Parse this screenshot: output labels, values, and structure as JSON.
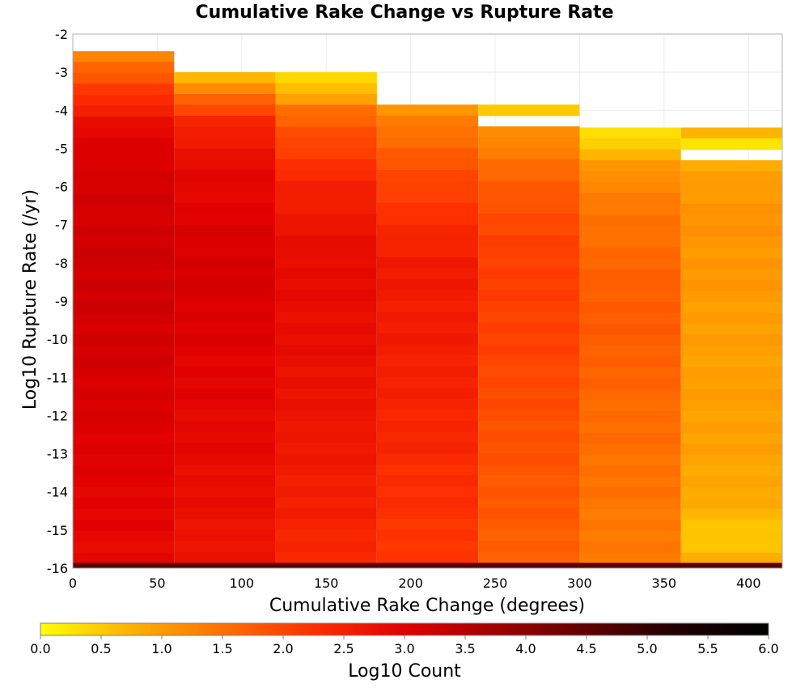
{
  "chart_data": {
    "type": "heatmap",
    "title": "Cumulative Rake Change vs Rupture Rate",
    "xlabel": "Cumulative Rake Change (degrees)",
    "ylabel": "Log10 Rupture Rate (/yr)",
    "xlim": [
      0,
      420
    ],
    "ylim": [
      -16,
      -2
    ],
    "x_ticks": [
      "0",
      "50",
      "100",
      "150",
      "200",
      "250",
      "300",
      "350",
      "400"
    ],
    "y_ticks": [
      "-2",
      "-3",
      "-4",
      "-5",
      "-6",
      "-7",
      "-8",
      "-9",
      "-10",
      "-11",
      "-12",
      "-13",
      "-14",
      "-15",
      "-16"
    ],
    "x_bin_edges": [
      0,
      60,
      120,
      180,
      240,
      300,
      360,
      420
    ],
    "y_bin_size": 0.2857,
    "grid": true,
    "colorbar": {
      "label": "Log10 Count",
      "range": [
        0,
        6
      ],
      "ticks": [
        "0.0",
        "0.5",
        "1.0",
        "1.5",
        "2.0",
        "2.5",
        "3.0",
        "3.5",
        "4.0",
        "4.5",
        "5.0",
        "5.5",
        "6.0"
      ],
      "colors": [
        "#ffff00",
        "#ffb000",
        "#ff7000",
        "#ff3000",
        "#e00000",
        "#a00000",
        "#600000",
        "#200000",
        "#000000"
      ]
    },
    "columns": [
      {
        "x_range": [
          0,
          60
        ],
        "y_top": -2.45,
        "profile": [
          [
            -2.45,
            1.2
          ],
          [
            -3.2,
            1.9
          ],
          [
            -3.9,
            2.5
          ],
          [
            -4.5,
            2.9
          ],
          [
            -5.5,
            3.1
          ],
          [
            -8.0,
            3.2
          ],
          [
            -10.0,
            3.15
          ],
          [
            -12.0,
            3.05
          ],
          [
            -14.0,
            2.95
          ],
          [
            -15.85,
            2.85
          ]
        ]
      },
      {
        "x_range": [
          60,
          120
        ],
        "y_top": -3.0,
        "profile": [
          [
            -3.0,
            0.4
          ],
          [
            -3.4,
            1.2
          ],
          [
            -3.9,
            1.9
          ],
          [
            -4.4,
            2.5
          ],
          [
            -5.5,
            2.85
          ],
          [
            -8.0,
            3.1
          ],
          [
            -10.0,
            3.0
          ],
          [
            -12.0,
            2.9
          ],
          [
            -14.0,
            2.8
          ],
          [
            -15.85,
            2.65
          ]
        ]
      },
      {
        "x_range": [
          120,
          180
        ],
        "y_top": -3.0,
        "profile": [
          [
            -3.0,
            0.15
          ],
          [
            -3.6,
            0.8
          ],
          [
            -4.0,
            1.5
          ],
          [
            -4.8,
            2.0
          ],
          [
            -6.0,
            2.5
          ],
          [
            -8.0,
            2.85
          ],
          [
            -10.0,
            2.8
          ],
          [
            -12.0,
            2.7
          ],
          [
            -14.0,
            2.55
          ],
          [
            -15.85,
            2.4
          ]
        ]
      },
      {
        "x_range": [
          180,
          240
        ],
        "y_top": -3.85,
        "profile": [
          [
            -3.85,
            1.0
          ],
          [
            -4.6,
            1.5
          ],
          [
            -5.5,
            1.9
          ],
          [
            -6.5,
            2.2
          ],
          [
            -8.0,
            2.6
          ],
          [
            -10.0,
            2.55
          ],
          [
            -12.0,
            2.45
          ],
          [
            -14.0,
            2.3
          ],
          [
            -15.85,
            2.15
          ]
        ]
      },
      {
        "x_range": [
          240,
          300
        ],
        "y_top": -3.85,
        "gap": [
          -4.15,
          -4.45
        ],
        "profile": [
          [
            -3.85,
            0.3
          ],
          [
            -4.45,
            1.05
          ],
          [
            -5.3,
            1.5
          ],
          [
            -6.5,
            1.9
          ],
          [
            -8.0,
            2.1
          ],
          [
            -10.0,
            2.05
          ],
          [
            -12.0,
            1.9
          ],
          [
            -14.0,
            1.8
          ],
          [
            -15.85,
            1.7
          ]
        ]
      },
      {
        "x_range": [
          300,
          360
        ],
        "y_top": -4.45,
        "profile": [
          [
            -4.45,
            0.6
          ],
          [
            -4.7,
            0.2
          ],
          [
            -5.3,
            0.9
          ],
          [
            -6.0,
            1.3
          ],
          [
            -7.5,
            1.55
          ],
          [
            -9.0,
            1.75
          ],
          [
            -10.5,
            1.7
          ],
          [
            -12.0,
            1.55
          ],
          [
            -14.0,
            1.45
          ],
          [
            -15.85,
            1.35
          ]
        ]
      },
      {
        "x_range": [
          360,
          420
        ],
        "y_top": -4.45,
        "gap": [
          -5.05,
          -5.35
        ],
        "profile": [
          [
            -4.45,
            0.9
          ],
          [
            -4.9,
            0.3
          ],
          [
            -5.35,
            0.8
          ],
          [
            -6.0,
            1.0
          ],
          [
            -6.7,
            1.1
          ],
          [
            -8.0,
            1.05
          ],
          [
            -10.0,
            0.95
          ],
          [
            -12.0,
            0.95
          ],
          [
            -14.0,
            0.85
          ],
          [
            -15.3,
            0.5
          ],
          [
            -15.85,
            0.8
          ]
        ]
      }
    ],
    "bottom_row": {
      "y_range": [
        -16,
        -15.86
      ],
      "color": "#5a0000"
    }
  }
}
